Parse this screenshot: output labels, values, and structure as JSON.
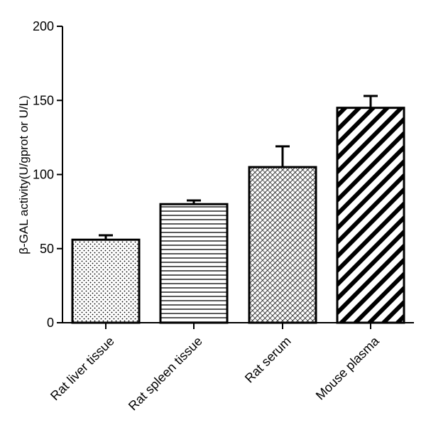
{
  "chart_data": {
    "type": "bar",
    "title": "",
    "xlabel": "",
    "ylabel": "β-GAL activity(U/gprot or U/L)",
    "ylim": [
      0,
      200
    ],
    "yticks": [
      0,
      50,
      100,
      150,
      200
    ],
    "categories": [
      "Rat liver tissue",
      "Rat spleen tissue",
      "Rat serum",
      "Mouse plasma"
    ],
    "values": [
      56,
      80,
      105,
      145
    ],
    "errors": [
      3,
      2.5,
      14,
      8
    ],
    "patterns": [
      "dots",
      "horizontal-lines",
      "dense-diagonal-crosshatch",
      "bold-diagonal-stripes"
    ],
    "grid": false,
    "legend": "none",
    "colors": {
      "bar_fill": "#ffffff",
      "stroke": "#000000"
    }
  }
}
